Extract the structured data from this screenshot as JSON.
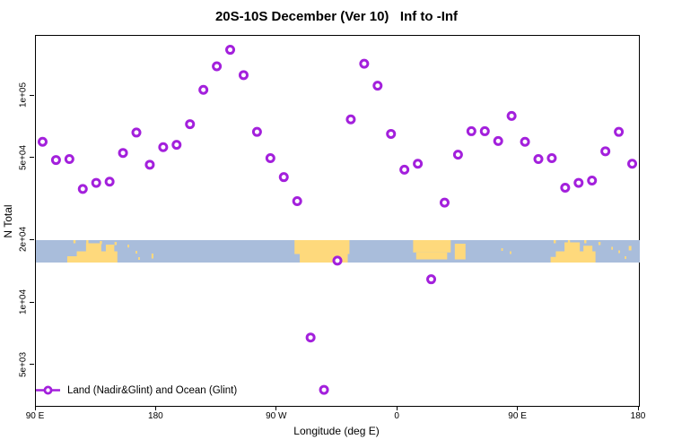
{
  "chart": {
    "title": "20S-10S December (Ver 10)   Inf to -Inf",
    "xlabel": "Longitude (deg E)",
    "ylabel": "N Total",
    "legend": {
      "label": "Land (Nadir&Glint) and Ocean (Glint)"
    },
    "colors": {
      "marker": "#A320DC",
      "ocean": "#A9BDDB",
      "land": "#FED97C",
      "axis": "#000000",
      "background": "#ffffff"
    }
  },
  "chart_data": {
    "type": "scatter",
    "title": "20S-10S December (Ver 10)   Inf to -Inf",
    "xlabel": "Longitude (deg E)",
    "ylabel": "N Total",
    "grid": false,
    "legend_position": "bottom-left-inside",
    "x_axis": {
      "units": "degrees longitude, wrapping eastward from 90E through 180, 90W, 0, 90E to 180",
      "start_deg": 90,
      "end_deg": 540,
      "ticks": [
        {
          "deg": 90,
          "label": "90 E"
        },
        {
          "deg": 180,
          "label": "180"
        },
        {
          "deg": 270,
          "label": "90 W"
        },
        {
          "deg": 360,
          "label": "0"
        },
        {
          "deg": 450,
          "label": "90 E"
        },
        {
          "deg": 540,
          "label": "180"
        }
      ]
    },
    "y_axis": {
      "scale": "log",
      "min": 3200,
      "max": 195000,
      "ticks": [
        {
          "value": 100000,
          "label": "1e+05"
        },
        {
          "value": 50000,
          "label": "5e+04"
        },
        {
          "value": 20000,
          "label": "2e+04"
        },
        {
          "value": 10000,
          "label": "1e+04"
        },
        {
          "value": 5000,
          "label": "5e+03"
        }
      ]
    },
    "series": [
      {
        "name": "Land (Nadir&Glint) and Ocean (Glint)",
        "marker": "open-circle",
        "color": "#A320DC",
        "points": [
          [
            95,
            60000
          ],
          [
            105,
            49000
          ],
          [
            115,
            49500
          ],
          [
            125,
            35500
          ],
          [
            135,
            38000
          ],
          [
            145,
            38500
          ],
          [
            155,
            53000
          ],
          [
            165,
            66500
          ],
          [
            175,
            46500
          ],
          [
            185,
            56500
          ],
          [
            195,
            58000
          ],
          [
            205,
            73000
          ],
          [
            215,
            107000
          ],
          [
            225,
            139000
          ],
          [
            235,
            167000
          ],
          [
            245,
            126000
          ],
          [
            255,
            67000
          ],
          [
            265,
            50000
          ],
          [
            275,
            40500
          ],
          [
            285,
            31000
          ],
          [
            295,
            6800
          ],
          [
            305,
            3800
          ],
          [
            315,
            16000
          ],
          [
            325,
            77000
          ],
          [
            335,
            143000
          ],
          [
            345,
            112000
          ],
          [
            355,
            65500
          ],
          [
            365,
            44000
          ],
          [
            375,
            47000
          ],
          [
            385,
            13000
          ],
          [
            395,
            30500
          ],
          [
            405,
            52000
          ],
          [
            415,
            67500
          ],
          [
            425,
            67500
          ],
          [
            435,
            60500
          ],
          [
            445,
            80000
          ],
          [
            455,
            60000
          ],
          [
            465,
            49500
          ],
          [
            475,
            50000
          ],
          [
            485,
            36000
          ],
          [
            495,
            38000
          ],
          [
            505,
            39000
          ],
          [
            515,
            54000
          ],
          [
            525,
            67000
          ],
          [
            535,
            47000
          ]
        ]
      }
    ],
    "map_strip": {
      "description": "land/ocean band for latitude 20S-10S drawn across plot between y=20000 and y=15600",
      "ocean_color": "#A9BDDB",
      "land_color": "#FED97C",
      "y_top_value": 20000,
      "y_bottom_value": 15600,
      "land_segments": [
        {
          "name": "australia-foot",
          "deg0": 113.4,
          "deg1": 120.8,
          "top": 0.72,
          "bottom": 1.0
        },
        {
          "name": "australia-base",
          "deg0": 120.5,
          "deg1": 150.8,
          "top": 0.5,
          "bottom": 1.0
        },
        {
          "name": "australia-peak",
          "deg0": 127.4,
          "deg1": 138.8,
          "top": 0.14,
          "bottom": 0.5
        },
        {
          "name": "australia-bump",
          "deg0": 142.2,
          "deg1": 148.5,
          "top": 0.2,
          "bottom": 0.5
        },
        {
          "name": "indonesia-speck",
          "deg0": 118.0,
          "deg1": 119.6,
          "top": 0.0,
          "bottom": 0.14
        },
        {
          "name": "indonesia-speck",
          "deg0": 127.6,
          "deg1": 129.2,
          "top": 0.0,
          "bottom": 0.14
        },
        {
          "name": "indonesia-speck",
          "deg0": 137.7,
          "deg1": 139.3,
          "top": 0.04,
          "bottom": 0.18
        },
        {
          "name": "indonesia-speck",
          "deg0": 148.7,
          "deg1": 150.3,
          "top": 0.08,
          "bottom": 0.22
        },
        {
          "name": "pacific-island",
          "deg0": 158.4,
          "deg1": 159.6,
          "top": 0.2,
          "bottom": 0.33
        },
        {
          "name": "pacific-island",
          "deg0": 164.4,
          "deg1": 165.6,
          "top": 0.48,
          "bottom": 0.6
        },
        {
          "name": "pacific-island",
          "deg0": 166.4,
          "deg1": 167.6,
          "top": 0.76,
          "bottom": 0.88
        },
        {
          "name": "pacific-island",
          "deg0": 176.3,
          "deg1": 177.7,
          "top": 0.6,
          "bottom": 0.82
        },
        {
          "name": "south-america-top",
          "deg0": 283.0,
          "deg1": 324.0,
          "top": 0.0,
          "bottom": 0.62
        },
        {
          "name": "south-america-bottom",
          "deg0": 286.9,
          "deg1": 322.7,
          "top": 0.62,
          "bottom": 1.0
        },
        {
          "name": "africa-top",
          "deg0": 371.5,
          "deg1": 399.6,
          "top": 0.0,
          "bottom": 0.55
        },
        {
          "name": "africa-bottom",
          "deg0": 373.8,
          "deg1": 396.9,
          "top": 0.55,
          "bottom": 0.86
        },
        {
          "name": "madagascar",
          "deg0": 402.6,
          "deg1": 410.6,
          "top": 0.16,
          "bottom": 0.86
        },
        {
          "name": "indian-ocean-speck",
          "deg0": 437.3,
          "deg1": 438.5,
          "top": 0.36,
          "bottom": 0.48
        },
        {
          "name": "indian-ocean-speck",
          "deg0": 443.6,
          "deg1": 444.8,
          "top": 0.5,
          "bottom": 0.62
        },
        {
          "name": "australia2-foot",
          "deg0": 474.1,
          "deg1": 478.5,
          "top": 0.75,
          "bottom": 1.0
        },
        {
          "name": "australia2-base",
          "deg0": 478.0,
          "deg1": 507.6,
          "top": 0.5,
          "bottom": 1.0
        },
        {
          "name": "australia2-peak",
          "deg0": 484.5,
          "deg1": 495.9,
          "top": 0.1,
          "bottom": 0.5
        },
        {
          "name": "australia2-bump",
          "deg0": 498.6,
          "deg1": 505.3,
          "top": 0.25,
          "bottom": 0.5
        },
        {
          "name": "indonesia2-speck",
          "deg0": 476.4,
          "deg1": 478.0,
          "top": 0.0,
          "bottom": 0.14
        },
        {
          "name": "indonesia2-speck",
          "deg0": 487.0,
          "deg1": 488.6,
          "top": 0.0,
          "bottom": 0.12
        },
        {
          "name": "indonesia2-speck",
          "deg0": 499.2,
          "deg1": 500.8,
          "top": 0.0,
          "bottom": 0.14
        },
        {
          "name": "indonesia2-speck",
          "deg0": 509.8,
          "deg1": 511.4,
          "top": 0.08,
          "bottom": 0.22
        },
        {
          "name": "pacific2-island",
          "deg0": 519.4,
          "deg1": 520.6,
          "top": 0.3,
          "bottom": 0.43
        },
        {
          "name": "pacific2-island",
          "deg0": 524.7,
          "deg1": 525.9,
          "top": 0.46,
          "bottom": 0.58
        },
        {
          "name": "pacific2-island",
          "deg0": 529.4,
          "deg1": 530.6,
          "top": 0.72,
          "bottom": 0.84
        },
        {
          "name": "pacific2-island",
          "deg0": 532.4,
          "deg1": 534.4,
          "top": 0.26,
          "bottom": 0.46
        }
      ]
    }
  }
}
